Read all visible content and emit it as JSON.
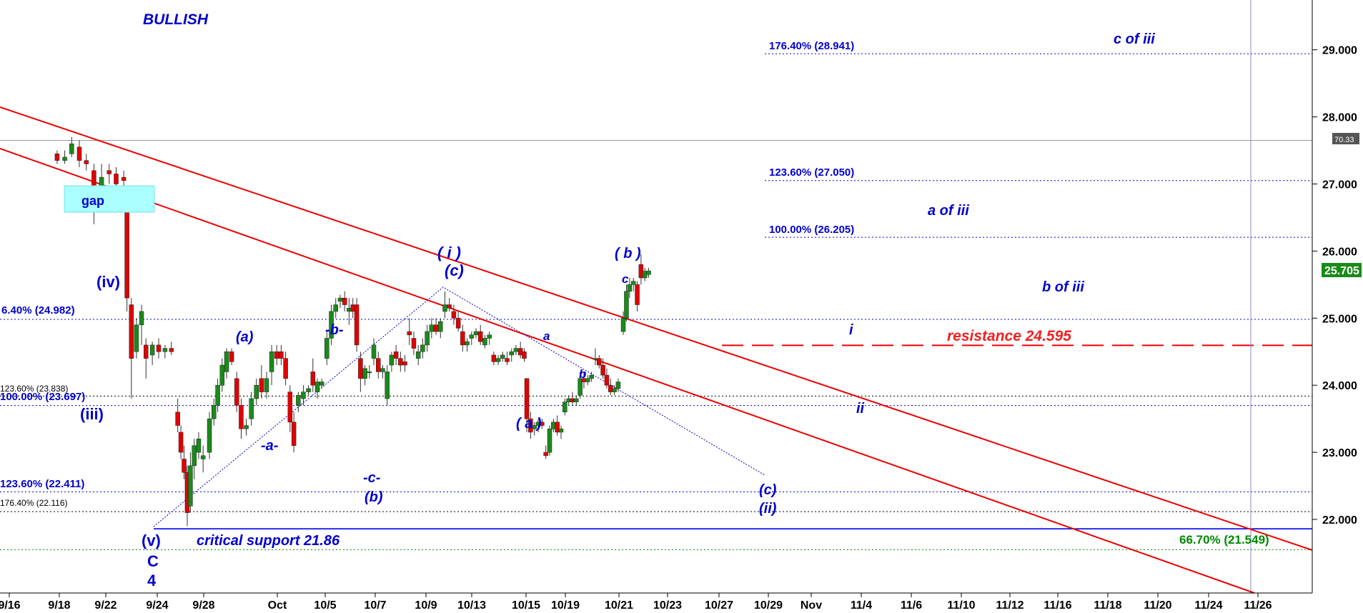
{
  "chart_data": {
    "type": "candlestick",
    "title": "BULLISH",
    "colors": {
      "up": "#1a8a1a",
      "down": "#e00000",
      "wave": "#0000cc",
      "trend": "#ee0000",
      "fib": "#0000cc",
      "support": "#0000ee",
      "green": "#008800",
      "black": "#000000"
    },
    "y_axis": {
      "ylim": [
        20.75,
        29.85
      ],
      "ticks": [
        "22.000",
        "23.000",
        "24.000",
        "25.000",
        "26.000",
        "27.000",
        "28.000",
        "29.000"
      ],
      "tick_values": [
        22,
        23,
        24,
        25,
        26,
        27,
        28,
        29
      ]
    },
    "x_axis": {
      "ticks": [
        "9/16",
        "9/18",
        "9/22",
        "9/24",
        "9/28",
        "Oct",
        "10/5",
        "10/7",
        "10/9",
        "10/13",
        "10/15",
        "10/19",
        "10/21",
        "10/23",
        "10/27",
        "10/29",
        "Nov",
        "11/4",
        "11/6",
        "11/10",
        "11/12",
        "11/16",
        "11/18",
        "11/20",
        "11/24",
        "11/26"
      ]
    },
    "price_boxes": {
      "last": "25.705",
      "gray_level": "70.33"
    },
    "candles": [
      [
        9.0,
        27.45,
        27.5,
        27.3,
        27.35
      ],
      [
        10.2,
        27.35,
        27.5,
        27.3,
        27.4
      ],
      [
        11.3,
        27.45,
        27.7,
        27.4,
        27.6
      ],
      [
        12.5,
        27.55,
        27.65,
        27.25,
        27.35
      ],
      [
        13.6,
        27.35,
        27.45,
        27.2,
        27.3
      ],
      [
        14.8,
        27.2,
        27.3,
        26.4,
        26.6
      ],
      [
        16.0,
        26.8,
        27.3,
        26.7,
        27.1
      ],
      [
        17.2,
        27.2,
        27.3,
        27.0,
        27.15
      ],
      [
        18.3,
        27.15,
        27.25,
        26.95,
        27.0
      ],
      [
        19.5,
        27.1,
        27.2,
        26.9,
        27.05
      ],
      [
        20.0,
        26.6,
        26.6,
        25.1,
        25.3
      ],
      [
        20.7,
        25.2,
        25.3,
        23.8,
        24.4
      ],
      [
        21.5,
        24.5,
        25.0,
        24.4,
        24.9
      ],
      [
        22.3,
        24.9,
        25.2,
        24.6,
        25.1
      ],
      [
        23.0,
        24.6,
        24.7,
        24.1,
        24.4
      ],
      [
        24.0,
        24.45,
        24.65,
        24.3,
        24.6
      ],
      [
        25.0,
        24.6,
        24.7,
        24.4,
        24.5
      ],
      [
        26.0,
        24.5,
        24.6,
        24.4,
        24.55
      ],
      [
        27.0,
        24.55,
        24.65,
        24.45,
        24.5
      ],
      [
        28.0,
        23.6,
        23.8,
        23.3,
        23.4
      ],
      [
        28.5,
        23.3,
        23.4,
        22.9,
        23.0
      ],
      [
        29.0,
        22.9,
        23.1,
        22.6,
        22.7
      ],
      [
        29.5,
        22.7,
        22.8,
        21.9,
        22.1
      ],
      [
        30.0,
        22.2,
        23.0,
        22.1,
        22.8
      ],
      [
        30.6,
        22.8,
        23.2,
        22.6,
        23.1
      ],
      [
        31.3,
        23.0,
        23.3,
        22.9,
        23.2
      ],
      [
        32.0,
        22.9,
        23.1,
        22.7,
        22.95
      ],
      [
        33.0,
        23.0,
        23.6,
        22.9,
        23.5
      ],
      [
        33.7,
        23.5,
        23.8,
        23.4,
        23.7
      ],
      [
        34.3,
        23.7,
        24.1,
        23.6,
        24.0
      ],
      [
        35.0,
        24.0,
        24.4,
        23.9,
        24.3
      ],
      [
        35.7,
        24.2,
        24.55,
        24.1,
        24.5
      ],
      [
        36.5,
        24.5,
        24.55,
        24.3,
        24.35
      ],
      [
        37.3,
        24.1,
        24.2,
        23.6,
        23.7
      ],
      [
        38.0,
        23.7,
        23.8,
        23.2,
        23.35
      ],
      [
        38.8,
        23.35,
        23.5,
        23.25,
        23.4
      ],
      [
        39.6,
        23.5,
        23.9,
        23.4,
        23.8
      ],
      [
        40.4,
        23.8,
        24.1,
        23.7,
        24.0
      ],
      [
        41.2,
        24.1,
        24.3,
        23.8,
        23.9
      ],
      [
        42.0,
        23.9,
        24.2,
        23.8,
        24.1
      ],
      [
        42.8,
        24.2,
        24.6,
        24.0,
        24.5
      ],
      [
        43.6,
        24.5,
        24.6,
        24.3,
        24.4
      ],
      [
        44.3,
        24.5,
        24.6,
        24.3,
        24.4
      ],
      [
        45.0,
        24.4,
        24.5,
        24.0,
        24.1
      ],
      [
        45.7,
        23.9,
        24.0,
        23.3,
        23.45
      ],
      [
        46.3,
        23.45,
        23.6,
        23.0,
        23.1
      ],
      [
        47.0,
        23.7,
        23.9,
        23.6,
        23.85
      ],
      [
        47.8,
        23.8,
        24.0,
        23.7,
        23.9
      ],
      [
        48.6,
        23.9,
        24.0,
        23.85,
        23.95
      ],
      [
        49.3,
        24.2,
        24.4,
        23.9,
        24.0
      ],
      [
        50.0,
        23.9,
        24.1,
        23.8,
        24.05
      ],
      [
        50.7,
        24.0,
        24.1,
        23.95,
        24.05
      ],
      [
        51.5,
        24.4,
        24.8,
        24.3,
        24.7
      ],
      [
        52.2,
        24.7,
        25.2,
        24.6,
        25.1
      ],
      [
        52.9,
        25.1,
        25.3,
        25.0,
        25.2
      ],
      [
        53.6,
        25.25,
        25.35,
        25.15,
        25.3
      ],
      [
        54.3,
        25.3,
        25.4,
        25.1,
        25.2
      ],
      [
        55.0,
        25.1,
        25.3,
        24.9,
        25.15
      ],
      [
        55.6,
        25.2,
        25.3,
        25.0,
        25.1
      ],
      [
        56.2,
        25.2,
        25.3,
        24.5,
        24.6
      ],
      [
        56.8,
        24.4,
        24.5,
        23.9,
        24.1
      ],
      [
        57.5,
        24.1,
        24.3,
        24.0,
        24.25
      ],
      [
        58.2,
        24.2,
        24.3,
        24.1,
        24.2
      ],
      [
        58.9,
        24.4,
        24.7,
        24.3,
        24.6
      ],
      [
        59.6,
        24.4,
        24.5,
        24.1,
        24.2
      ],
      [
        60.3,
        24.2,
        24.3,
        24.1,
        24.25
      ],
      [
        61.0,
        23.8,
        24.3,
        23.7,
        24.2
      ],
      [
        61.7,
        24.3,
        24.5,
        24.2,
        24.45
      ],
      [
        62.4,
        24.5,
        24.6,
        24.3,
        24.4
      ],
      [
        63.1,
        24.4,
        24.5,
        24.2,
        24.3
      ],
      [
        63.8,
        24.35,
        24.45,
        24.2,
        24.3
      ],
      [
        64.5,
        24.8,
        25.0,
        24.6,
        24.75
      ],
      [
        65.2,
        24.7,
        24.8,
        24.45,
        24.55
      ],
      [
        65.9,
        24.4,
        24.6,
        24.3,
        24.5
      ],
      [
        66.6,
        24.5,
        24.7,
        24.4,
        24.6
      ],
      [
        67.3,
        24.6,
        24.9,
        24.5,
        24.8
      ],
      [
        68.0,
        24.8,
        25.0,
        24.7,
        24.9
      ],
      [
        68.7,
        24.9,
        25.0,
        24.75,
        24.8
      ],
      [
        69.4,
        24.8,
        25.0,
        24.7,
        24.95
      ],
      [
        70.1,
        25.1,
        25.4,
        25.0,
        25.2
      ],
      [
        70.8,
        25.2,
        25.3,
        25.1,
        25.15
      ],
      [
        71.5,
        25.1,
        25.2,
        24.9,
        25.0
      ],
      [
        72.2,
        25.0,
        25.1,
        24.8,
        24.85
      ],
      [
        72.9,
        24.8,
        24.9,
        24.5,
        24.6
      ],
      [
        73.6,
        24.6,
        24.7,
        24.5,
        24.65
      ],
      [
        74.3,
        24.7,
        24.8,
        24.6,
        24.75
      ],
      [
        75.0,
        24.75,
        24.85,
        24.7,
        24.8
      ],
      [
        75.7,
        24.8,
        24.9,
        24.6,
        24.65
      ],
      [
        76.4,
        24.6,
        24.75,
        24.55,
        24.7
      ],
      [
        77.1,
        24.7,
        24.8,
        24.6,
        24.75
      ],
      [
        77.8,
        24.45,
        24.5,
        24.3,
        24.35
      ],
      [
        78.5,
        24.35,
        24.45,
        24.3,
        24.4
      ],
      [
        79.2,
        24.4,
        24.5,
        24.35,
        24.45
      ],
      [
        79.9,
        24.4,
        24.5,
        24.3,
        24.35
      ],
      [
        80.6,
        24.45,
        24.55,
        24.35,
        24.5
      ],
      [
        81.3,
        24.5,
        24.6,
        24.45,
        24.55
      ],
      [
        82.0,
        24.55,
        24.65,
        24.4,
        24.45
      ],
      [
        82.6,
        24.5,
        24.55,
        24.35,
        24.4
      ],
      [
        83.0,
        24.1,
        24.1,
        23.3,
        23.5
      ],
      [
        83.6,
        23.5,
        23.6,
        23.2,
        23.3
      ],
      [
        84.2,
        23.35,
        23.45,
        23.25,
        23.4
      ],
      [
        84.8,
        23.4,
        23.5,
        23.3,
        23.45
      ],
      [
        85.4,
        23.45,
        23.5,
        23.35,
        23.4
      ],
      [
        86.0,
        23.0,
        23.1,
        22.9,
        22.95
      ],
      [
        86.6,
        23.0,
        23.4,
        22.95,
        23.35
      ],
      [
        87.2,
        23.35,
        23.5,
        23.3,
        23.45
      ],
      [
        87.8,
        23.45,
        23.55,
        23.25,
        23.3
      ],
      [
        88.4,
        23.3,
        23.4,
        23.2,
        23.35
      ],
      [
        89.0,
        23.6,
        23.8,
        23.55,
        23.75
      ],
      [
        89.6,
        23.75,
        23.85,
        23.7,
        23.8
      ],
      [
        90.2,
        23.8,
        23.9,
        23.7,
        23.75
      ],
      [
        90.8,
        23.75,
        23.85,
        23.7,
        23.8
      ],
      [
        91.4,
        23.85,
        24.2,
        23.8,
        24.1
      ],
      [
        92.0,
        24.1,
        24.2,
        23.95,
        24.05
      ],
      [
        92.6,
        24.05,
        24.15,
        24.0,
        24.1
      ],
      [
        93.2,
        24.1,
        24.2,
        24.05,
        24.15
      ],
      [
        93.8,
        24.4,
        24.55,
        24.3,
        24.4
      ],
      [
        94.4,
        24.4,
        24.45,
        24.25,
        24.3
      ],
      [
        95.0,
        24.3,
        24.4,
        24.1,
        24.15
      ],
      [
        95.6,
        24.15,
        24.25,
        23.95,
        24.0
      ],
      [
        96.2,
        24.0,
        24.1,
        23.85,
        23.9
      ],
      [
        96.8,
        23.9,
        24.0,
        23.85,
        23.95
      ],
      [
        97.4,
        23.95,
        24.1,
        23.9,
        24.05
      ],
      [
        98.2,
        24.8,
        25.1,
        24.75,
        25.0
      ],
      [
        98.7,
        25.0,
        25.5,
        24.95,
        25.4
      ],
      [
        99.2,
        25.4,
        25.6,
        25.3,
        25.5
      ],
      [
        99.8,
        25.5,
        25.6,
        25.4,
        25.55
      ],
      [
        100.4,
        25.5,
        25.55,
        25.1,
        25.2
      ],
      [
        101.0,
        25.8,
        25.95,
        25.5,
        25.6
      ],
      [
        101.6,
        25.6,
        25.75,
        25.55,
        25.7
      ],
      [
        102.2,
        25.65,
        25.75,
        25.6,
        25.705
      ]
    ],
    "horizontal_lines": [
      {
        "label": "176.40% (28.941)",
        "value": 28.941
      },
      {
        "label": "123.60% (27.050)",
        "value": 27.05
      },
      {
        "label": "100.00% (26.205)",
        "value": 26.205
      },
      {
        "label": "6.40% (24.982)",
        "value": 24.982
      },
      {
        "label": "123.60% (23.838)",
        "value": 23.838
      },
      {
        "label": "100.00% (23.697)",
        "value": 23.697
      },
      {
        "label": "123.60% (22.411)",
        "value": 22.411
      },
      {
        "label": "176.40% (22.116)",
        "value": 22.116
      },
      {
        "label": "critical support 21.86",
        "value": 21.86
      },
      {
        "label": "66.70% (21.549)",
        "value": 21.549
      },
      {
        "label": "resistance 24.595",
        "value": 24.595
      },
      {
        "label": "",
        "value": 27.65
      }
    ],
    "annotations": {
      "gap": "gap",
      "waves": [
        "(iv)",
        "(iii)",
        "(v)",
        "C",
        "4",
        "(a)",
        "-a-",
        "-b-",
        "-c-",
        "(b)",
        "( i )",
        "(c)",
        "a",
        "b",
        "( a )",
        "( b )",
        "c",
        "(c)",
        "(ii)",
        "i",
        "ii",
        "a of iii",
        "b of iii",
        "c of iii"
      ]
    }
  }
}
